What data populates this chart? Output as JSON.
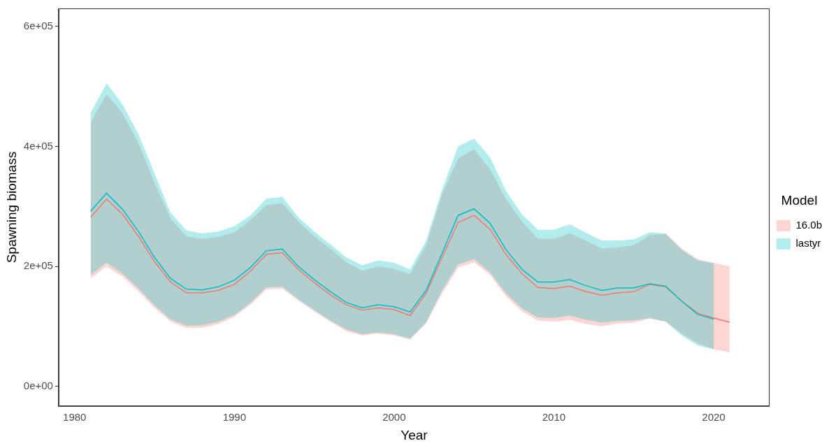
{
  "chart_data": {
    "type": "line",
    "xlabel": "Year",
    "ylabel": "Spawning biomass",
    "legend_title": "Model",
    "legend": "right",
    "grid": false,
    "x": [
      1981,
      1982,
      1983,
      1984,
      1985,
      1986,
      1987,
      1988,
      1989,
      1990,
      1991,
      1992,
      1993,
      1994,
      1995,
      1996,
      1997,
      1998,
      1999,
      2000,
      2001,
      2002,
      2003,
      2004,
      2005,
      2006,
      2007,
      2008,
      2009,
      2010,
      2011,
      2012,
      2013,
      2014,
      2015,
      2016,
      2017,
      2018,
      2019,
      2020,
      2021
    ],
    "xlim": [
      1979,
      2023.5
    ],
    "xticks": [
      1980,
      1990,
      2000,
      2010,
      2020
    ],
    "ylim": [
      -33000,
      630000
    ],
    "yticks": [
      {
        "value": 0,
        "label": "0e+00"
      },
      {
        "value": 200000,
        "label": "2e+05"
      },
      {
        "value": 400000,
        "label": "4e+05"
      },
      {
        "value": 600000,
        "label": "6e+05"
      }
    ],
    "series": [
      {
        "name": "16.0b",
        "color": "#f8766d",
        "values": [
          282000,
          312000,
          287000,
          250000,
          208000,
          174000,
          156000,
          156000,
          160000,
          170000,
          192000,
          220000,
          223000,
          195000,
          173000,
          153000,
          136000,
          127000,
          131000,
          128000,
          118000,
          155000,
          215000,
          273000,
          285000,
          262000,
          220000,
          188000,
          165000,
          163000,
          167000,
          158000,
          152000,
          156000,
          158000,
          170000,
          166000,
          142000,
          122000,
          114000,
          107000
        ],
        "lower": [
          180000,
          200000,
          183000,
          158000,
          131000,
          108000,
          97000,
          98000,
          104000,
          116000,
          136000,
          162000,
          163000,
          143000,
          125000,
          108000,
          92000,
          85000,
          88000,
          85000,
          78000,
          105000,
          155000,
          198000,
          207000,
          186000,
          150000,
          125000,
          110000,
          108000,
          111000,
          104000,
          100000,
          105000,
          106000,
          113000,
          108000,
          88000,
          72000,
          62000,
          57000
        ],
        "upper": [
          440000,
          487000,
          455000,
          405000,
          340000,
          280000,
          250000,
          246000,
          249000,
          257000,
          277000,
          302000,
          305000,
          275000,
          250000,
          230000,
          207000,
          193000,
          200000,
          196000,
          187000,
          235000,
          320000,
          380000,
          395000,
          362000,
          312000,
          275000,
          246000,
          246000,
          255000,
          243000,
          230000,
          232000,
          235000,
          252000,
          254000,
          230000,
          212000,
          206000,
          200000
        ]
      },
      {
        "name": "lastyr",
        "color": "#00bfc4",
        "x": [
          1981,
          1982,
          1983,
          1984,
          1985,
          1986,
          1987,
          1988,
          1989,
          1990,
          1991,
          1992,
          1993,
          1994,
          1995,
          1996,
          1997,
          1998,
          1999,
          2000,
          2001,
          2002,
          2003,
          2004,
          2005,
          2006,
          2007,
          2008,
          2009,
          2010,
          2011,
          2012,
          2013,
          2014,
          2015,
          2016,
          2017,
          2018,
          2019,
          2020
        ],
        "values": [
          292000,
          322000,
          295000,
          258000,
          215000,
          180000,
          162000,
          161000,
          166000,
          177000,
          198000,
          226000,
          229000,
          200000,
          178000,
          158000,
          140000,
          131000,
          136000,
          133000,
          124000,
          160000,
          222000,
          285000,
          296000,
          272000,
          228000,
          195000,
          174000,
          174000,
          178000,
          168000,
          160000,
          164000,
          164000,
          171000,
          167000,
          142000,
          120000,
          112000
        ],
        "lower": [
          186000,
          206000,
          188000,
          163000,
          135000,
          112000,
          101000,
          102000,
          108000,
          119000,
          139000,
          165000,
          166000,
          145000,
          127000,
          110000,
          95000,
          87000,
          90000,
          87000,
          80000,
          107000,
          160000,
          203000,
          212000,
          190000,
          155000,
          130000,
          115000,
          114000,
          118000,
          111000,
          106000,
          109000,
          110000,
          114000,
          108000,
          85000,
          68000,
          62000
        ],
        "upper": [
          456000,
          505000,
          470000,
          420000,
          355000,
          290000,
          260000,
          255000,
          258000,
          267000,
          285000,
          313000,
          316000,
          282000,
          258000,
          237000,
          215000,
          202000,
          210000,
          206000,
          195000,
          243000,
          328000,
          400000,
          413000,
          382000,
          326000,
          287000,
          261000,
          261000,
          270000,
          256000,
          243000,
          243000,
          245000,
          257000,
          255000,
          228000,
          210000,
          205000
        ]
      }
    ]
  }
}
